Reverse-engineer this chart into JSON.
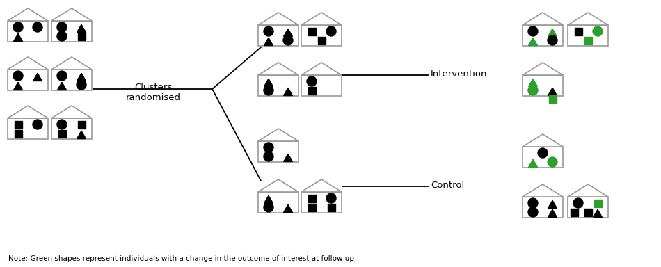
{
  "background_color": "#ffffff",
  "black": "#000000",
  "green": "#2ca02c",
  "house_edge_color": "#999999",
  "house_face_color": "#ffffff",
  "house_lw": 1.2,
  "note_text": "Note: Green shapes represent individuals with a change in the outcome of interest at follow up",
  "note_fontsize": 7.5,
  "clusters_randomised_text": "Clusters\nrandomised",
  "intervention_text": "Intervention",
  "control_text": "Control",
  "label_fontsize": 9.5
}
